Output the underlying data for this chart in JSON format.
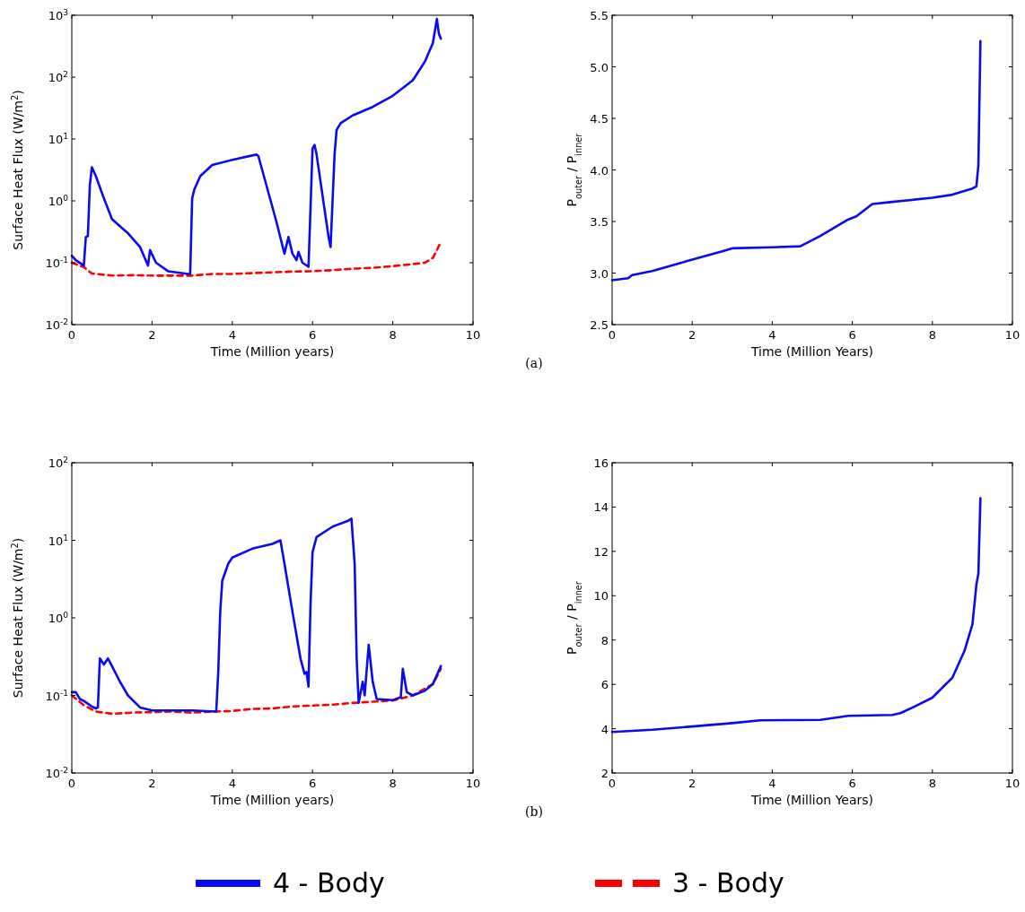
{
  "chart_data": [
    {
      "type": "line",
      "xlabel": "Time  (Million years)",
      "ylabel": "Surface Heat Flux  (W/m$^{2}$)",
      "log": "y",
      "xlim": [
        0,
        10
      ],
      "xticks": [
        0,
        2,
        4,
        6,
        8,
        10
      ],
      "ylim": [
        0.01,
        1000
      ],
      "yticks": [
        {
          "value": 0.01,
          "label": "10$^{-2}$"
        },
        {
          "value": 0.1,
          "label": "10$^{-1}$"
        },
        {
          "value": 1,
          "label": "10$^{0}$"
        },
        {
          "value": 10,
          "label": "10$^{1}$"
        },
        {
          "value": 100,
          "label": "10$^{2}$"
        },
        {
          "value": 1000,
          "label": "10$^{3}$"
        }
      ],
      "legend": "bottom",
      "annotations": [
        "(a)"
      ],
      "series": [
        {
          "name": "3 - Body",
          "color": "#ff0000",
          "line_style": "dashed",
          "x": [
            0,
            0.3,
            0.5,
            1,
            1.5,
            2,
            2.5,
            3,
            3.5,
            4,
            4.5,
            5,
            5.5,
            6,
            6.5,
            7,
            7.5,
            8,
            8.5,
            8.8,
            9,
            9.1,
            9.2
          ],
          "values": [
            0.1,
            0.085,
            0.067,
            0.062,
            0.063,
            0.062,
            0.062,
            0.062,
            0.066,
            0.066,
            0.068,
            0.07,
            0.072,
            0.073,
            0.076,
            0.08,
            0.083,
            0.088,
            0.095,
            0.1,
            0.12,
            0.16,
            0.22
          ]
        },
        {
          "name": "4 - Body",
          "color": "#0a0aee",
          "x": [
            0,
            0.05,
            0.1,
            0.3,
            0.35,
            0.4,
            0.45,
            0.5,
            0.6,
            0.8,
            1,
            1.3,
            1.4,
            1.7,
            1.9,
            1.95,
            2.1,
            2.4,
            2.9,
            2.95,
            3,
            3.05,
            3.2,
            3.5,
            4,
            4.6,
            4.65,
            5.1,
            5.3,
            5.4,
            5.5,
            5.6,
            5.65,
            5.75,
            5.9,
            6,
            6.05,
            6.1,
            6.4,
            6.45,
            6.55,
            6.6,
            6.7,
            7,
            7.5,
            8,
            8.5,
            8.8,
            9,
            9.1,
            9.15,
            9.2
          ],
          "values": [
            0.13,
            0.12,
            0.11,
            0.09,
            0.26,
            0.27,
            1.8,
            3.5,
            2.5,
            1.1,
            0.51,
            0.34,
            0.3,
            0.18,
            0.09,
            0.16,
            0.1,
            0.073,
            0.066,
            0.066,
            1.1,
            1.5,
            2.5,
            3.8,
            4.6,
            5.6,
            5.3,
            0.46,
            0.14,
            0.26,
            0.14,
            0.11,
            0.15,
            0.1,
            0.086,
            7,
            8,
            5.7,
            0.26,
            0.18,
            5.7,
            14,
            18,
            24,
            33,
            50,
            89,
            178,
            355,
            870,
            500,
            417
          ]
        }
      ]
    },
    {
      "type": "line",
      "xlabel": "Time  (Million Years)",
      "ylabel": "P$_{outer}$ / P$_{inner}$",
      "xlim": [
        0,
        10
      ],
      "xticks": [
        0,
        2,
        4,
        6,
        8,
        10
      ],
      "ylim": [
        2.5,
        5.5
      ],
      "yticks": [
        2.5,
        {
          "value": 3,
          "label": "3.0"
        },
        3.5,
        {
          "value": 4,
          "label": "4.0"
        },
        4.5,
        {
          "value": 5,
          "label": "5.0"
        },
        5.5
      ],
      "series": [
        {
          "color": "#0a0aee",
          "x": [
            0,
            0.4,
            0.5,
            1,
            2,
            2.75,
            3,
            4,
            4.7,
            5.2,
            5.9,
            6.1,
            6.5,
            7,
            8,
            8.5,
            9,
            9.1,
            9.15,
            9.2
          ],
          "values": [
            2.93,
            2.95,
            2.98,
            3.02,
            3.13,
            3.21,
            3.24,
            3.25,
            3.26,
            3.36,
            3.52,
            3.55,
            3.67,
            3.69,
            3.73,
            3.76,
            3.82,
            3.84,
            4.05,
            5.25
          ]
        }
      ]
    },
    {
      "type": "line",
      "xlabel": "Time  (Million years)",
      "ylabel": "Surface Heat Flux  (W/m$^{2}$)",
      "log": "y",
      "xlim": [
        0,
        10
      ],
      "xticks": [
        0,
        2,
        4,
        6,
        8,
        10
      ],
      "ylim": [
        0.01,
        100
      ],
      "yticks": [
        {
          "value": 0.01,
          "label": "10$^{-2}$"
        },
        {
          "value": 0.1,
          "label": "10$^{-1}$"
        },
        {
          "value": 1,
          "label": "10$^{0}$"
        },
        {
          "value": 10,
          "label": "10$^{1}$"
        },
        {
          "value": 100,
          "label": "10$^{2}$"
        }
      ],
      "annotations": [
        "(b)"
      ],
      "series": [
        {
          "color": "#ff0000",
          "line_style": "dashed",
          "x": [
            0,
            0.3,
            0.6,
            1,
            1.5,
            2,
            2.5,
            3,
            3.5,
            4,
            4.5,
            5,
            5.5,
            6,
            6.5,
            7,
            7.5,
            8,
            8.5,
            9,
            9.2
          ],
          "values": [
            0.1,
            0.075,
            0.062,
            0.058,
            0.06,
            0.061,
            0.062,
            0.06,
            0.062,
            0.063,
            0.067,
            0.068,
            0.072,
            0.074,
            0.076,
            0.08,
            0.083,
            0.086,
            0.1,
            0.14,
            0.22
          ]
        },
        {
          "color": "#0a0aee",
          "x": [
            0,
            0.1,
            0.2,
            0.3,
            0.5,
            0.6,
            0.65,
            0.7,
            0.8,
            0.9,
            1,
            1.2,
            1.4,
            1.7,
            2,
            2.5,
            3,
            3.6,
            3.65,
            3.7,
            3.75,
            3.9,
            4,
            4.5,
            5,
            5.2,
            5.3,
            5.5,
            5.7,
            5.8,
            5.85,
            5.9,
            5.95,
            6,
            6.1,
            6.5,
            6.9,
            6.97,
            7.05,
            7.1,
            7.15,
            7.25,
            7.3,
            7.4,
            7.5,
            7.6,
            8,
            8.2,
            8.25,
            8.35,
            8.5,
            8.8,
            9,
            9.2
          ],
          "values": [
            0.11,
            0.11,
            0.09,
            0.085,
            0.072,
            0.068,
            0.07,
            0.3,
            0.25,
            0.3,
            0.24,
            0.15,
            0.1,
            0.07,
            0.064,
            0.064,
            0.064,
            0.062,
            0.2,
            1.2,
            3,
            5,
            6,
            7.8,
            9,
            10,
            5,
            1.2,
            0.3,
            0.19,
            0.2,
            0.13,
            1.5,
            7,
            11,
            15,
            18,
            19,
            5,
            0.3,
            0.08,
            0.15,
            0.1,
            0.45,
            0.15,
            0.09,
            0.087,
            0.095,
            0.22,
            0.11,
            0.1,
            0.115,
            0.14,
            0.24
          ]
        }
      ]
    },
    {
      "type": "line",
      "xlabel": "Time  (Million Years)",
      "ylabel": "P$_{outer}$ / P$_{inner}$",
      "xlim": [
        0,
        10
      ],
      "xticks": [
        0,
        2,
        4,
        6,
        8,
        10
      ],
      "ylim": [
        2,
        16
      ],
      "yticks": [
        2,
        4,
        6,
        8,
        10,
        12,
        14,
        16
      ],
      "series": [
        {
          "color": "#0a0aee",
          "x": [
            0,
            1,
            2,
            3,
            3.7,
            5.2,
            5.9,
            7,
            7.2,
            7.5,
            8,
            8.5,
            8.8,
            9,
            9.1,
            9.15,
            9.2
          ],
          "values": [
            3.85,
            3.95,
            4.1,
            4.25,
            4.38,
            4.4,
            4.58,
            4.62,
            4.7,
            4.95,
            5.4,
            6.3,
            7.5,
            8.7,
            10.5,
            11,
            14.4
          ]
        }
      ]
    }
  ]
}
